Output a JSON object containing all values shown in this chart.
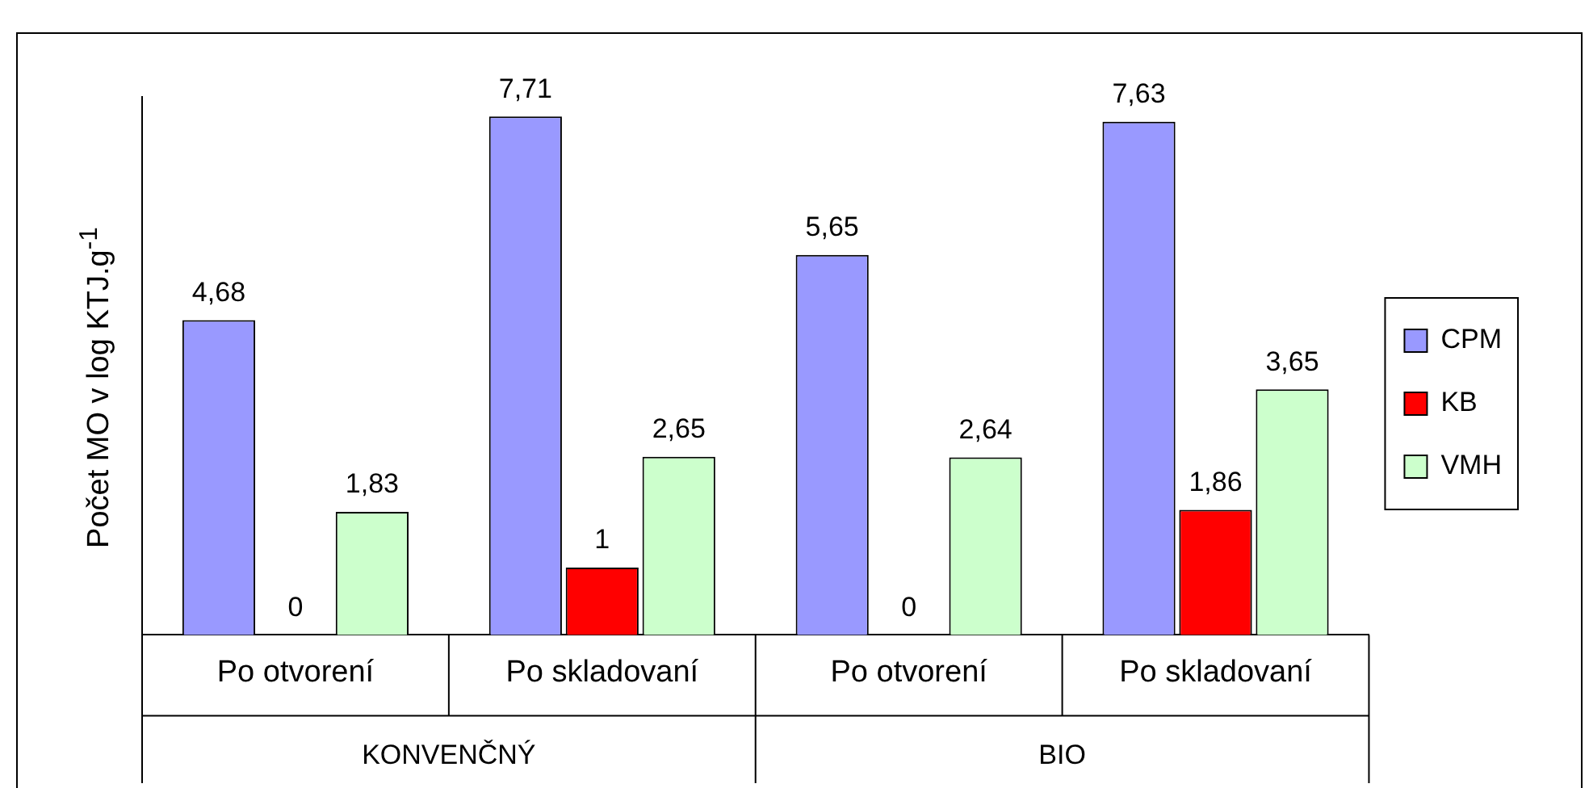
{
  "chart_data": {
    "type": "bar",
    "ylabel": "Počet MO v log KTJ.g$^{-1}$",
    "categories": [
      "Po otvorení",
      "Po skladovaní",
      "Po otvorení",
      "Po skladovaní"
    ],
    "series": [
      {
        "name": "CPM",
        "color": "#9999ff",
        "values": [
          4.68,
          7.71,
          5.65,
          7.63
        ],
        "value_labels": [
          "4,68",
          "7,71",
          "5,65",
          "7,63"
        ]
      },
      {
        "name": "KB",
        "color": "#ff0000",
        "values": [
          0,
          1,
          0,
          1.86
        ],
        "value_labels": [
          "0",
          "1",
          "0",
          "1,86"
        ]
      },
      {
        "name": "VMH",
        "color": "#ccffcc",
        "values": [
          1.83,
          2.65,
          2.64,
          3.65
        ],
        "value_labels": [
          "1,83",
          "2,65",
          "2,64",
          "3,65"
        ]
      }
    ],
    "annotations": [
      "KONVENČNÝ",
      "BIO"
    ],
    "grid": false,
    "legend": "right"
  }
}
